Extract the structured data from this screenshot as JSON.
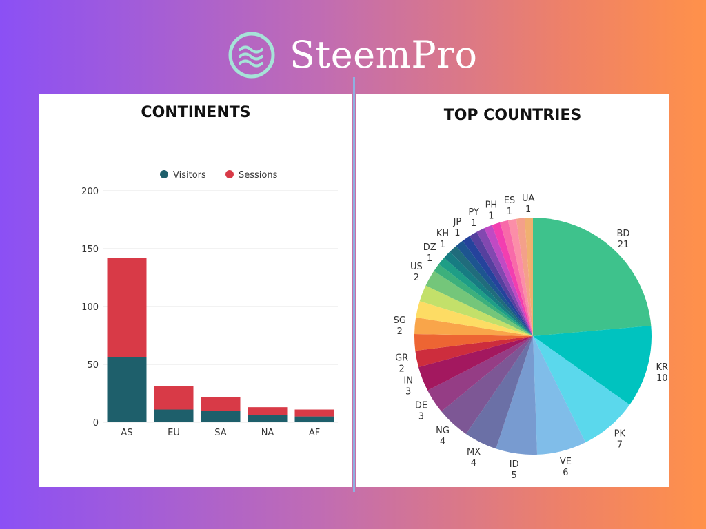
{
  "brand": {
    "name": "SteemPro",
    "logo_icon": "waves-icon"
  },
  "chart_data": [
    {
      "type": "bar",
      "stacked": true,
      "title": "CONTINENTS",
      "categories": [
        "AS",
        "EU",
        "SA",
        "NA",
        "AF"
      ],
      "series": [
        {
          "name": "Visitors",
          "color": "#1e5f6b",
          "values": [
            56,
            11,
            10,
            6,
            5
          ]
        },
        {
          "name": "Sessions",
          "color": "#d83a47",
          "values": [
            86,
            20,
            12,
            7,
            6
          ]
        }
      ],
      "ylim": [
        0,
        200
      ],
      "yticks": [
        "0",
        "50",
        "100",
        "150",
        "200"
      ],
      "xlabel": "",
      "ylabel": "",
      "grid": true,
      "legend": "top"
    },
    {
      "type": "pie",
      "title": "TOP COUNTRIES",
      "slices": [
        {
          "label": "BD",
          "value": 21,
          "color": "#3ec28c"
        },
        {
          "label": "KR",
          "value": 10,
          "color": "#00c3bf"
        },
        {
          "label": "PK",
          "value": 7,
          "color": "#5bd8ec"
        },
        {
          "label": "VE",
          "value": 6,
          "color": "#80bde9"
        },
        {
          "label": "ID",
          "value": 5,
          "color": "#789bd0"
        },
        {
          "label": "MX",
          "value": 4,
          "color": "#6b70a6"
        },
        {
          "label": "NG",
          "value": 4,
          "color": "#7d5795"
        },
        {
          "label": "DE",
          "value": 3,
          "color": "#953d85"
        },
        {
          "label": "IN",
          "value": 3,
          "color": "#a3185f"
        },
        {
          "label": "GR",
          "value": 2,
          "color": "#cd2d3d"
        },
        {
          "label": "",
          "value": 2,
          "color": "#ed6533"
        },
        {
          "label": "SG",
          "value": 2,
          "color": "#f9a54a"
        },
        {
          "label": "",
          "value": 2,
          "color": "#fddc64"
        },
        {
          "label": "",
          "value": 2,
          "color": "#c3e06a"
        },
        {
          "label": "US",
          "value": 2,
          "color": "#74c67a"
        },
        {
          "label": "",
          "value": 1,
          "color": "#3cb07c"
        },
        {
          "label": "DZ",
          "value": 1,
          "color": "#1e9e86"
        },
        {
          "label": "",
          "value": 1,
          "color": "#177c82"
        },
        {
          "label": "KH",
          "value": 1,
          "color": "#206c7c"
        },
        {
          "label": "",
          "value": 1,
          "color": "#1d5590"
        },
        {
          "label": "JP",
          "value": 1,
          "color": "#25439c"
        },
        {
          "label": "",
          "value": 1,
          "color": "#55409e"
        },
        {
          "label": "PY",
          "value": 1,
          "color": "#8248b0"
        },
        {
          "label": "",
          "value": 1,
          "color": "#c04ac4"
        },
        {
          "label": "PH",
          "value": 1,
          "color": "#f23eb0"
        },
        {
          "label": "",
          "value": 1,
          "color": "#f86aa9"
        },
        {
          "label": "ES",
          "value": 1,
          "color": "#fb8ea8"
        },
        {
          "label": "",
          "value": 1,
          "color": "#f4a08a"
        },
        {
          "label": "UA",
          "value": 1,
          "color": "#f0b070"
        }
      ]
    }
  ]
}
